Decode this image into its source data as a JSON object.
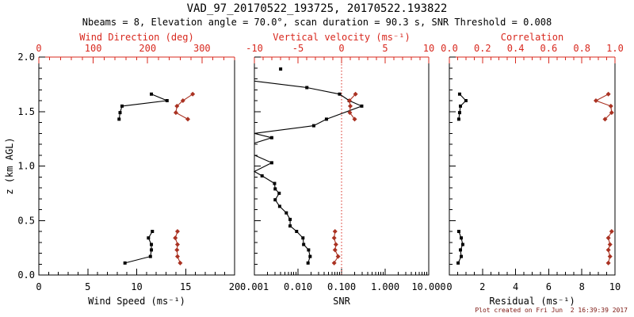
{
  "colors": {
    "black": "#000000",
    "axis_red": "#d8281e",
    "data_red": "#aa3222",
    "footer_red": "#7c150f",
    "background": "#ffffff"
  },
  "chart_data": {
    "type": "line",
    "title": "VAD_97_20170522_193725, 20170522.193822",
    "subtitle": "Nbeams = 8, Elevation angle = 70.0°, scan duration = 90.3 s, SNR Threshold = 0.008",
    "footer": "Plot created on Fri Jun  2 16:39:39 2017",
    "legend": "none",
    "grid": "off",
    "y_axis": {
      "label": "z (km AGL)",
      "range": [
        0,
        2
      ],
      "major": [
        0,
        0.5,
        1,
        1.5,
        2
      ],
      "labels": [
        "0.0",
        "0.5",
        "1.0",
        "1.5",
        "2.0"
      ],
      "minor_step": 0.1
    },
    "panels": [
      {
        "name": "wind-panel",
        "top_axis": {
          "label": "Wind Direction (deg)",
          "range": [
            0,
            360
          ],
          "major": [
            0,
            100,
            200,
            300
          ],
          "labels": [
            "0",
            "100",
            "200",
            "300"
          ],
          "minor_step": 20
        },
        "bottom_axis": {
          "label": "Wind Speed (ms⁻¹)",
          "range": [
            0,
            20
          ],
          "major": [
            0,
            5,
            10,
            15,
            20
          ],
          "labels": [
            "0",
            "5",
            "10",
            "15",
            "20"
          ],
          "minor_step": 1
        },
        "series": [
          {
            "name": "wind-speed",
            "color": "black",
            "axis": "bottom",
            "marker": "square",
            "segments": [
              [
                [
                  11.5,
                  1.66
                ],
                [
                  13.1,
                  1.6
                ],
                [
                  8.5,
                  1.55
                ],
                [
                  8.3,
                  1.49
                ],
                [
                  8.2,
                  1.43
                ]
              ],
              [
                [
                  11.6,
                  0.4
                ],
                [
                  11.2,
                  0.34
                ],
                [
                  11.5,
                  0.28
                ],
                [
                  11.5,
                  0.23
                ],
                [
                  11.4,
                  0.17
                ],
                [
                  8.8,
                  0.11
                ]
              ]
            ]
          },
          {
            "name": "wind-direction",
            "color": "red",
            "axis": "top",
            "marker": "diamond",
            "segments": [
              [
                [
                  283,
                  1.66
                ],
                [
                  265,
                  1.6
                ],
                [
                  254,
                  1.55
                ],
                [
                  252,
                  1.49
                ],
                [
                  274,
                  1.43
                ]
              ],
              [
                [
                  255,
                  0.4
                ],
                [
                  251,
                  0.34
                ],
                [
                  255,
                  0.28
                ],
                [
                  254,
                  0.23
                ],
                [
                  255,
                  0.17
                ],
                [
                  260,
                  0.11
                ]
              ]
            ]
          }
        ]
      },
      {
        "name": "snr-panel",
        "top_axis": {
          "label": "Vertical velocity (ms⁻¹)",
          "range": [
            -10,
            10
          ],
          "major": [
            -10,
            -5,
            0,
            5,
            10
          ],
          "labels": [
            "-10",
            "-5",
            "0",
            "5",
            "10"
          ],
          "minor_step": 1
        },
        "bottom_axis": {
          "label": "SNR",
          "scale": "log",
          "range": [
            0.001,
            10
          ],
          "major": [
            0.001,
            0.01,
            0.1,
            1,
            10
          ],
          "labels": [
            "0.001",
            "0.010",
            "0.100",
            "1.000",
            "10.000"
          ]
        },
        "ref_line": {
          "axis": "top",
          "value": 0,
          "style": "dotted",
          "color": "red"
        },
        "series": [
          {
            "name": "snr",
            "color": "black",
            "axis": "bottom",
            "marker": "square",
            "segments": [
              [
                [
                  0.004,
                  1.89
                ]
              ],
              [
                [
                  0.001,
                  1.78,
                  0
                ],
                [
                  0.016,
                  1.72
                ],
                [
                  0.09,
                  1.66
                ],
                [
                  0.15,
                  1.6
                ],
                [
                  0.29,
                  1.55
                ],
                [
                  0.045,
                  1.43
                ],
                [
                  0.023,
                  1.37
                ],
                [
                  0.001,
                  1.3,
                  0
                ],
                [
                  0.0025,
                  1.26
                ],
                [
                  0.001,
                  1.21,
                  0
                ]
              ],
              [
                [
                  0.001,
                  1.1,
                  0
                ],
                [
                  0.0025,
                  1.03
                ],
                [
                  0.001,
                  0.95,
                  0
                ],
                [
                  0.0015,
                  0.91
                ],
                [
                  0.0029,
                  0.84
                ],
                [
                  0.003,
                  0.79
                ],
                [
                  0.0037,
                  0.75
                ],
                [
                  0.003,
                  0.69
                ],
                [
                  0.0038,
                  0.63
                ],
                [
                  0.0054,
                  0.57
                ],
                [
                  0.0066,
                  0.51
                ],
                [
                  0.0066,
                  0.45
                ],
                [
                  0.0093,
                  0.4
                ],
                [
                  0.013,
                  0.34
                ],
                [
                  0.0135,
                  0.28
                ],
                [
                  0.0175,
                  0.23
                ],
                [
                  0.019,
                  0.17
                ],
                [
                  0.017,
                  0.11
                ]
              ]
            ]
          },
          {
            "name": "vertical-velocity",
            "color": "red",
            "axis": "top",
            "marker": "diamond",
            "segments": [
              [
                [
                  1.6,
                  1.66
                ],
                [
                  0.9,
                  1.6
                ],
                [
                  1.0,
                  1.55
                ],
                [
                  0.95,
                  1.49
                ],
                [
                  1.5,
                  1.43
                ]
              ],
              [
                [
                  -0.75,
                  0.4
                ],
                [
                  -0.85,
                  0.34
                ],
                [
                  -0.65,
                  0.28
                ],
                [
                  -0.75,
                  0.23
                ],
                [
                  -0.4,
                  0.17
                ],
                [
                  -0.85,
                  0.11
                ]
              ]
            ]
          }
        ]
      },
      {
        "name": "residual-panel",
        "top_axis": {
          "label": "Correlation",
          "range": [
            0,
            1
          ],
          "major": [
            0,
            0.2,
            0.4,
            0.6,
            0.8,
            1
          ],
          "labels": [
            "0.0",
            "0.2",
            "0.4",
            "0.6",
            "0.8",
            "1.0"
          ],
          "minor_step": 0.05
        },
        "bottom_axis": {
          "label": "Residual (ms⁻¹)",
          "range": [
            0,
            10
          ],
          "major": [
            0,
            2,
            4,
            6,
            8,
            10
          ],
          "labels": [
            "0",
            "2",
            "4",
            "6",
            "8",
            "10"
          ],
          "minor_step": 0.5
        },
        "series": [
          {
            "name": "residual",
            "color": "black",
            "axis": "bottom",
            "marker": "square",
            "segments": [
              [
                [
                  0.62,
                  1.66
                ],
                [
                  1.0,
                  1.6
                ],
                [
                  0.67,
                  1.55
                ],
                [
                  0.62,
                  1.49
                ],
                [
                  0.57,
                  1.43
                ]
              ],
              [
                [
                  0.57,
                  0.4
                ],
                [
                  0.72,
                  0.34
                ],
                [
                  0.81,
                  0.28
                ],
                [
                  0.67,
                  0.23
                ],
                [
                  0.72,
                  0.17
                ],
                [
                  0.53,
                  0.11
                ]
              ]
            ]
          },
          {
            "name": "correlation",
            "color": "red",
            "axis": "top",
            "marker": "diamond",
            "segments": [
              [
                [
                  0.96,
                  1.66
                ],
                [
                  0.885,
                  1.6
                ],
                [
                  0.975,
                  1.55
                ],
                [
                  0.98,
                  1.49
                ],
                [
                  0.94,
                  1.43
                ]
              ],
              [
                [
                  0.98,
                  0.4
                ],
                [
                  0.96,
                  0.34
                ],
                [
                  0.97,
                  0.28
                ],
                [
                  0.96,
                  0.23
                ],
                [
                  0.97,
                  0.17
                ],
                [
                  0.96,
                  0.11
                ]
              ]
            ]
          }
        ]
      }
    ]
  }
}
